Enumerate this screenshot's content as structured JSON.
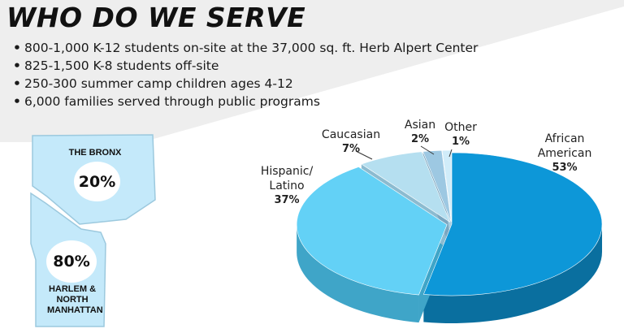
{
  "title": "WHO DO WE SERVE",
  "bullets": [
    "800-1,000 K-12 students on-site at the 37,000 sq. ft. Herb Alpert Center",
    "825-1,500 K-8 students off-site",
    "250-300 summer camp children ages 4-12",
    "6,000 families served through public programs"
  ],
  "colors": {
    "background_wedge": "#eeeeee",
    "map_fill": "#c4e9fa",
    "map_stroke": "#9cc9de"
  },
  "chart_data": [
    {
      "type": "map",
      "regions": [
        {
          "name": "THE BRONX",
          "value": 20,
          "label": "20%"
        },
        {
          "name": "HARLEM & NORTH MANHATTAN",
          "value": 80,
          "label": "80%"
        }
      ]
    },
    {
      "type": "pie",
      "style": "3d",
      "slices": [
        {
          "name": "African American",
          "value": 53,
          "label": "53%",
          "color": "#0d97d8",
          "side": "#0a6f9f"
        },
        {
          "name": "Hispanic/ Latino",
          "value": 37,
          "label": "37%",
          "color": "#63d1f6",
          "side": "#3fa5c8"
        },
        {
          "name": "Caucasian",
          "value": 7,
          "label": "7%",
          "color": "#b5dff0",
          "side": "#8cbbd0"
        },
        {
          "name": "Asian",
          "value": 2,
          "label": "2%",
          "color": "#9dc8e2",
          "side": "#7aa6c0"
        },
        {
          "name": "Other",
          "value": 1,
          "label": "1%",
          "color": "#d0ecf9",
          "side": "#a9cde0"
        }
      ]
    }
  ]
}
